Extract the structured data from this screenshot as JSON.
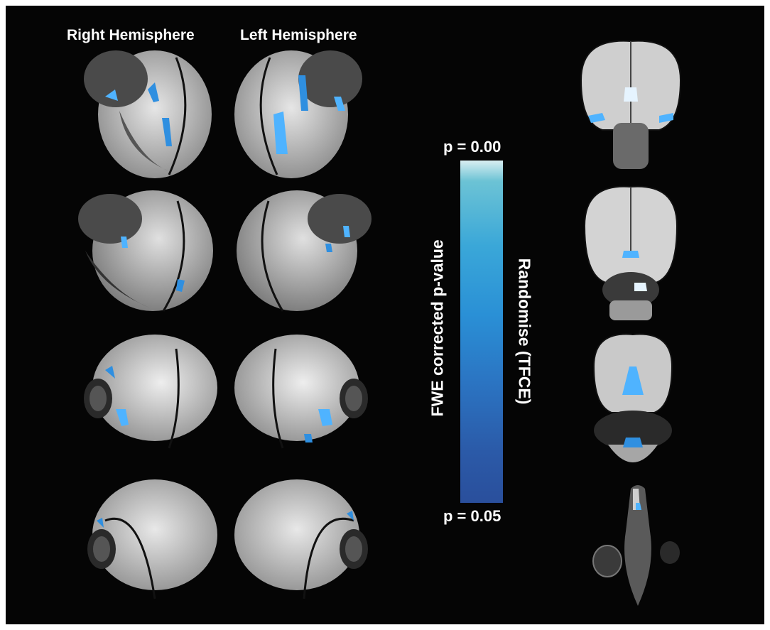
{
  "column_titles": {
    "right": "Right Hemisphere",
    "left": "Left Hemisphere"
  },
  "colorbar": {
    "top_label": "p = 0.00",
    "bottom_label": "p = 0.05",
    "left_axis_label": "FWE corrected p-value",
    "right_axis_label": "Randomise (TFCE)",
    "colors": [
      "#d9eef2",
      "#6cc3d5",
      "#3aa7d8",
      "#2a90d6",
      "#2b74c2",
      "#2a4f9c"
    ]
  },
  "colors": {
    "background": "#050505",
    "brain_surface": "#c9c9c9",
    "overlay": "#2f8fe0"
  }
}
